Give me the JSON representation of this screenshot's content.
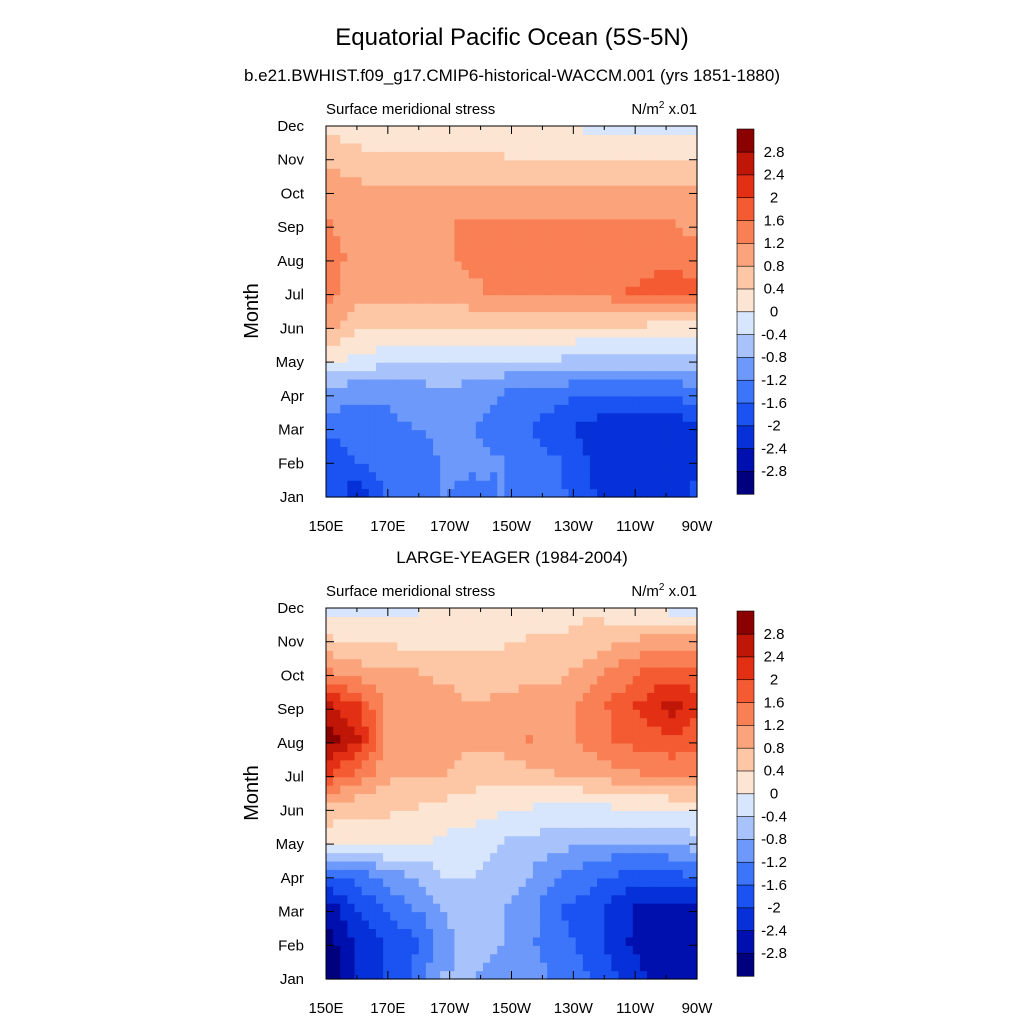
{
  "figure": {
    "title": "Equatorial Pacific Ocean (5S-5N)",
    "subtitle": "b.e21.BWHIST.f09_g17.CMIP6-historical-WACCM.001 (yrs 1851-1880)"
  },
  "chart_data": [
    {
      "type": "heatmap",
      "title": "",
      "left_label": "Surface meridional stress",
      "right_label_main": "N/m",
      "right_label_sup": "2",
      "right_label_tail": " x.01",
      "ylabel": "Month",
      "x_ticks": [
        "150E",
        "170E",
        "170W",
        "150W",
        "130W",
        "110W",
        "90W"
      ],
      "x_lon": [
        150,
        170,
        190,
        210,
        230,
        250,
        270
      ],
      "xlim": [
        150,
        270
      ],
      "y_ticks": [
        "Jan",
        "Feb",
        "Mar",
        "Apr",
        "May",
        "Jun",
        "Jul",
        "Aug",
        "Sep",
        "Oct",
        "Nov",
        "Dec"
      ],
      "grid": false,
      "colorbar": "right",
      "z": [
        [
          -1.7,
          -2.3,
          -1.5,
          -1.3,
          -1.2,
          -1.3,
          -1.2,
          -1.3,
          -1.5,
          -1.9,
          -2.2,
          -2.3,
          -2.2,
          -1.9
        ],
        [
          -2.0,
          -1.5,
          -1.4,
          -1.6,
          -1.1,
          -1.1,
          -1.2,
          -1.4,
          -1.6,
          -2.0,
          -2.4,
          -2.4,
          -2.3,
          -2.0
        ],
        [
          -1.4,
          -1.3,
          -1.3,
          -1.2,
          -1.0,
          -1.2,
          -1.4,
          -1.6,
          -1.9,
          -2.1,
          -2.2,
          -2.4,
          -2.3,
          -2.1
        ],
        [
          -1.0,
          -1.1,
          -1.1,
          -1.0,
          -0.9,
          -1.0,
          -1.2,
          -1.3,
          -1.4,
          -1.6,
          -1.6,
          -1.6,
          -1.5,
          -1.3
        ],
        [
          0.1,
          -0.1,
          -0.2,
          -0.3,
          -0.3,
          -0.3,
          -0.4,
          -0.4,
          -0.4,
          -0.5,
          -0.5,
          -0.5,
          -0.5,
          -0.5
        ],
        [
          0.9,
          0.5,
          0.5,
          0.5,
          0.5,
          0.5,
          0.6,
          0.6,
          0.5,
          0.4,
          0.4,
          0.4,
          0.3,
          0.3
        ],
        [
          1.3,
          0.9,
          0.9,
          0.9,
          1.0,
          1.1,
          1.3,
          1.3,
          1.3,
          1.3,
          1.5,
          1.7,
          1.8,
          1.7
        ],
        [
          1.3,
          1.1,
          1.0,
          1.0,
          1.1,
          1.3,
          1.4,
          1.4,
          1.4,
          1.4,
          1.3,
          1.4,
          1.5,
          1.3
        ],
        [
          1.2,
          1.1,
          1.0,
          1.0,
          1.1,
          1.3,
          1.3,
          1.3,
          1.3,
          1.3,
          1.2,
          1.2,
          1.2,
          1.0
        ],
        [
          1.1,
          0.9,
          0.8,
          0.8,
          0.8,
          0.8,
          0.8,
          0.8,
          0.8,
          0.8,
          0.8,
          0.9,
          0.9,
          0.9
        ],
        [
          0.6,
          0.5,
          0.4,
          0.4,
          0.4,
          0.4,
          0.4,
          0.3,
          0.3,
          0.3,
          0.3,
          0.3,
          0.3,
          0.3
        ],
        [
          0.3,
          0.1,
          -0.1,
          -0.1,
          -0.1,
          -0.1,
          -0.1,
          0.0,
          0.0,
          -0.1,
          -0.2,
          -0.2,
          -0.1,
          -0.1
        ]
      ]
    },
    {
      "type": "heatmap",
      "title": "LARGE-YEAGER (1984-2004)",
      "left_label": "Surface meridional stress",
      "right_label_main": "N/m",
      "right_label_sup": "2",
      "right_label_tail": " x.01",
      "ylabel": "Month",
      "x_ticks": [
        "150E",
        "170E",
        "170W",
        "150W",
        "130W",
        "110W",
        "90W"
      ],
      "x_lon": [
        150,
        170,
        190,
        210,
        230,
        250,
        270
      ],
      "xlim": [
        150,
        270
      ],
      "y_ticks": [
        "Jan",
        "Feb",
        "Mar",
        "Apr",
        "May",
        "Jun",
        "Jul",
        "Aug",
        "Sep",
        "Oct",
        "Nov",
        "Dec"
      ],
      "grid": false,
      "colorbar": "right",
      "z": [
        [
          -3.2,
          -2.4,
          -2.0,
          -1.5,
          -0.8,
          -0.8,
          -0.9,
          -1.0,
          -1.3,
          -1.6,
          -2.0,
          -2.4,
          -2.6,
          -2.4
        ],
        [
          -3.0,
          -2.2,
          -2.0,
          -1.7,
          -0.9,
          -0.7,
          -0.8,
          -1.1,
          -1.5,
          -1.7,
          -2.2,
          -2.6,
          -2.7,
          -2.6
        ],
        [
          -2.6,
          -2.0,
          -1.5,
          -1.2,
          -0.8,
          -0.6,
          -0.8,
          -1.0,
          -1.6,
          -1.8,
          -2.2,
          -2.5,
          -2.6,
          -2.5
        ],
        [
          -1.6,
          -1.4,
          -1.0,
          -0.7,
          -0.4,
          -0.4,
          -0.6,
          -0.8,
          -1.2,
          -1.4,
          -1.6,
          -1.8,
          -1.7,
          -1.5
        ],
        [
          0.2,
          0.2,
          0.2,
          0.1,
          -0.1,
          -0.2,
          -0.4,
          -0.5,
          -0.6,
          -0.7,
          -0.8,
          -0.8,
          -0.7,
          -0.5
        ],
        [
          0.6,
          0.5,
          0.5,
          0.4,
          0.3,
          0.2,
          0.1,
          0.0,
          -0.1,
          -0.1,
          0.0,
          0.1,
          0.1,
          0.2
        ],
        [
          2.0,
          1.5,
          0.9,
          0.9,
          0.8,
          0.6,
          0.6,
          0.7,
          0.8,
          0.9,
          1.1,
          1.2,
          1.3,
          1.2
        ],
        [
          3.0,
          2.4,
          1.1,
          1.1,
          1.0,
          0.9,
          0.9,
          1.2,
          1.0,
          1.3,
          1.6,
          1.8,
          1.9,
          1.7
        ],
        [
          2.4,
          2.0,
          1.1,
          1.1,
          1.0,
          0.8,
          0.9,
          1.0,
          0.9,
          1.3,
          1.7,
          2.1,
          2.6,
          2.1
        ],
        [
          1.2,
          1.0,
          0.8,
          0.8,
          0.7,
          0.6,
          0.6,
          0.7,
          0.7,
          0.9,
          1.3,
          1.6,
          1.7,
          1.6
        ],
        [
          0.4,
          0.3,
          0.3,
          0.2,
          0.2,
          0.2,
          0.3,
          0.4,
          0.4,
          0.5,
          0.7,
          0.8,
          0.8,
          0.8
        ],
        [
          -0.3,
          -0.2,
          -0.1,
          -0.1,
          0.1,
          0.2,
          0.3,
          0.3,
          0.2,
          0.3,
          0.1,
          -0.1,
          -0.3,
          -0.3
        ]
      ]
    }
  ],
  "colorbar": {
    "levels": [
      -3.2,
      -2.8,
      -2.4,
      -2.0,
      -1.6,
      -1.2,
      -0.8,
      -0.4,
      0,
      0.4,
      0.8,
      1.2,
      1.6,
      2.0,
      2.4,
      2.8,
      3.2
    ],
    "labels": [
      "-2.8",
      "-2.4",
      "-2",
      "-1.6",
      "-1.2",
      "-0.8",
      "-0.4",
      "0",
      "0.4",
      "0.8",
      "1.2",
      "1.6",
      "2",
      "2.4",
      "2.8"
    ],
    "colors": [
      "#00007f",
      "#0010ae",
      "#0631d9",
      "#1a53f1",
      "#3c75f9",
      "#6d99fb",
      "#a8c2fc",
      "#d7e6fd",
      "#fde5d3",
      "#fdc7a5",
      "#fba47c",
      "#f97f55",
      "#f45b33",
      "#e33014",
      "#bf1607",
      "#8b0000"
    ]
  }
}
